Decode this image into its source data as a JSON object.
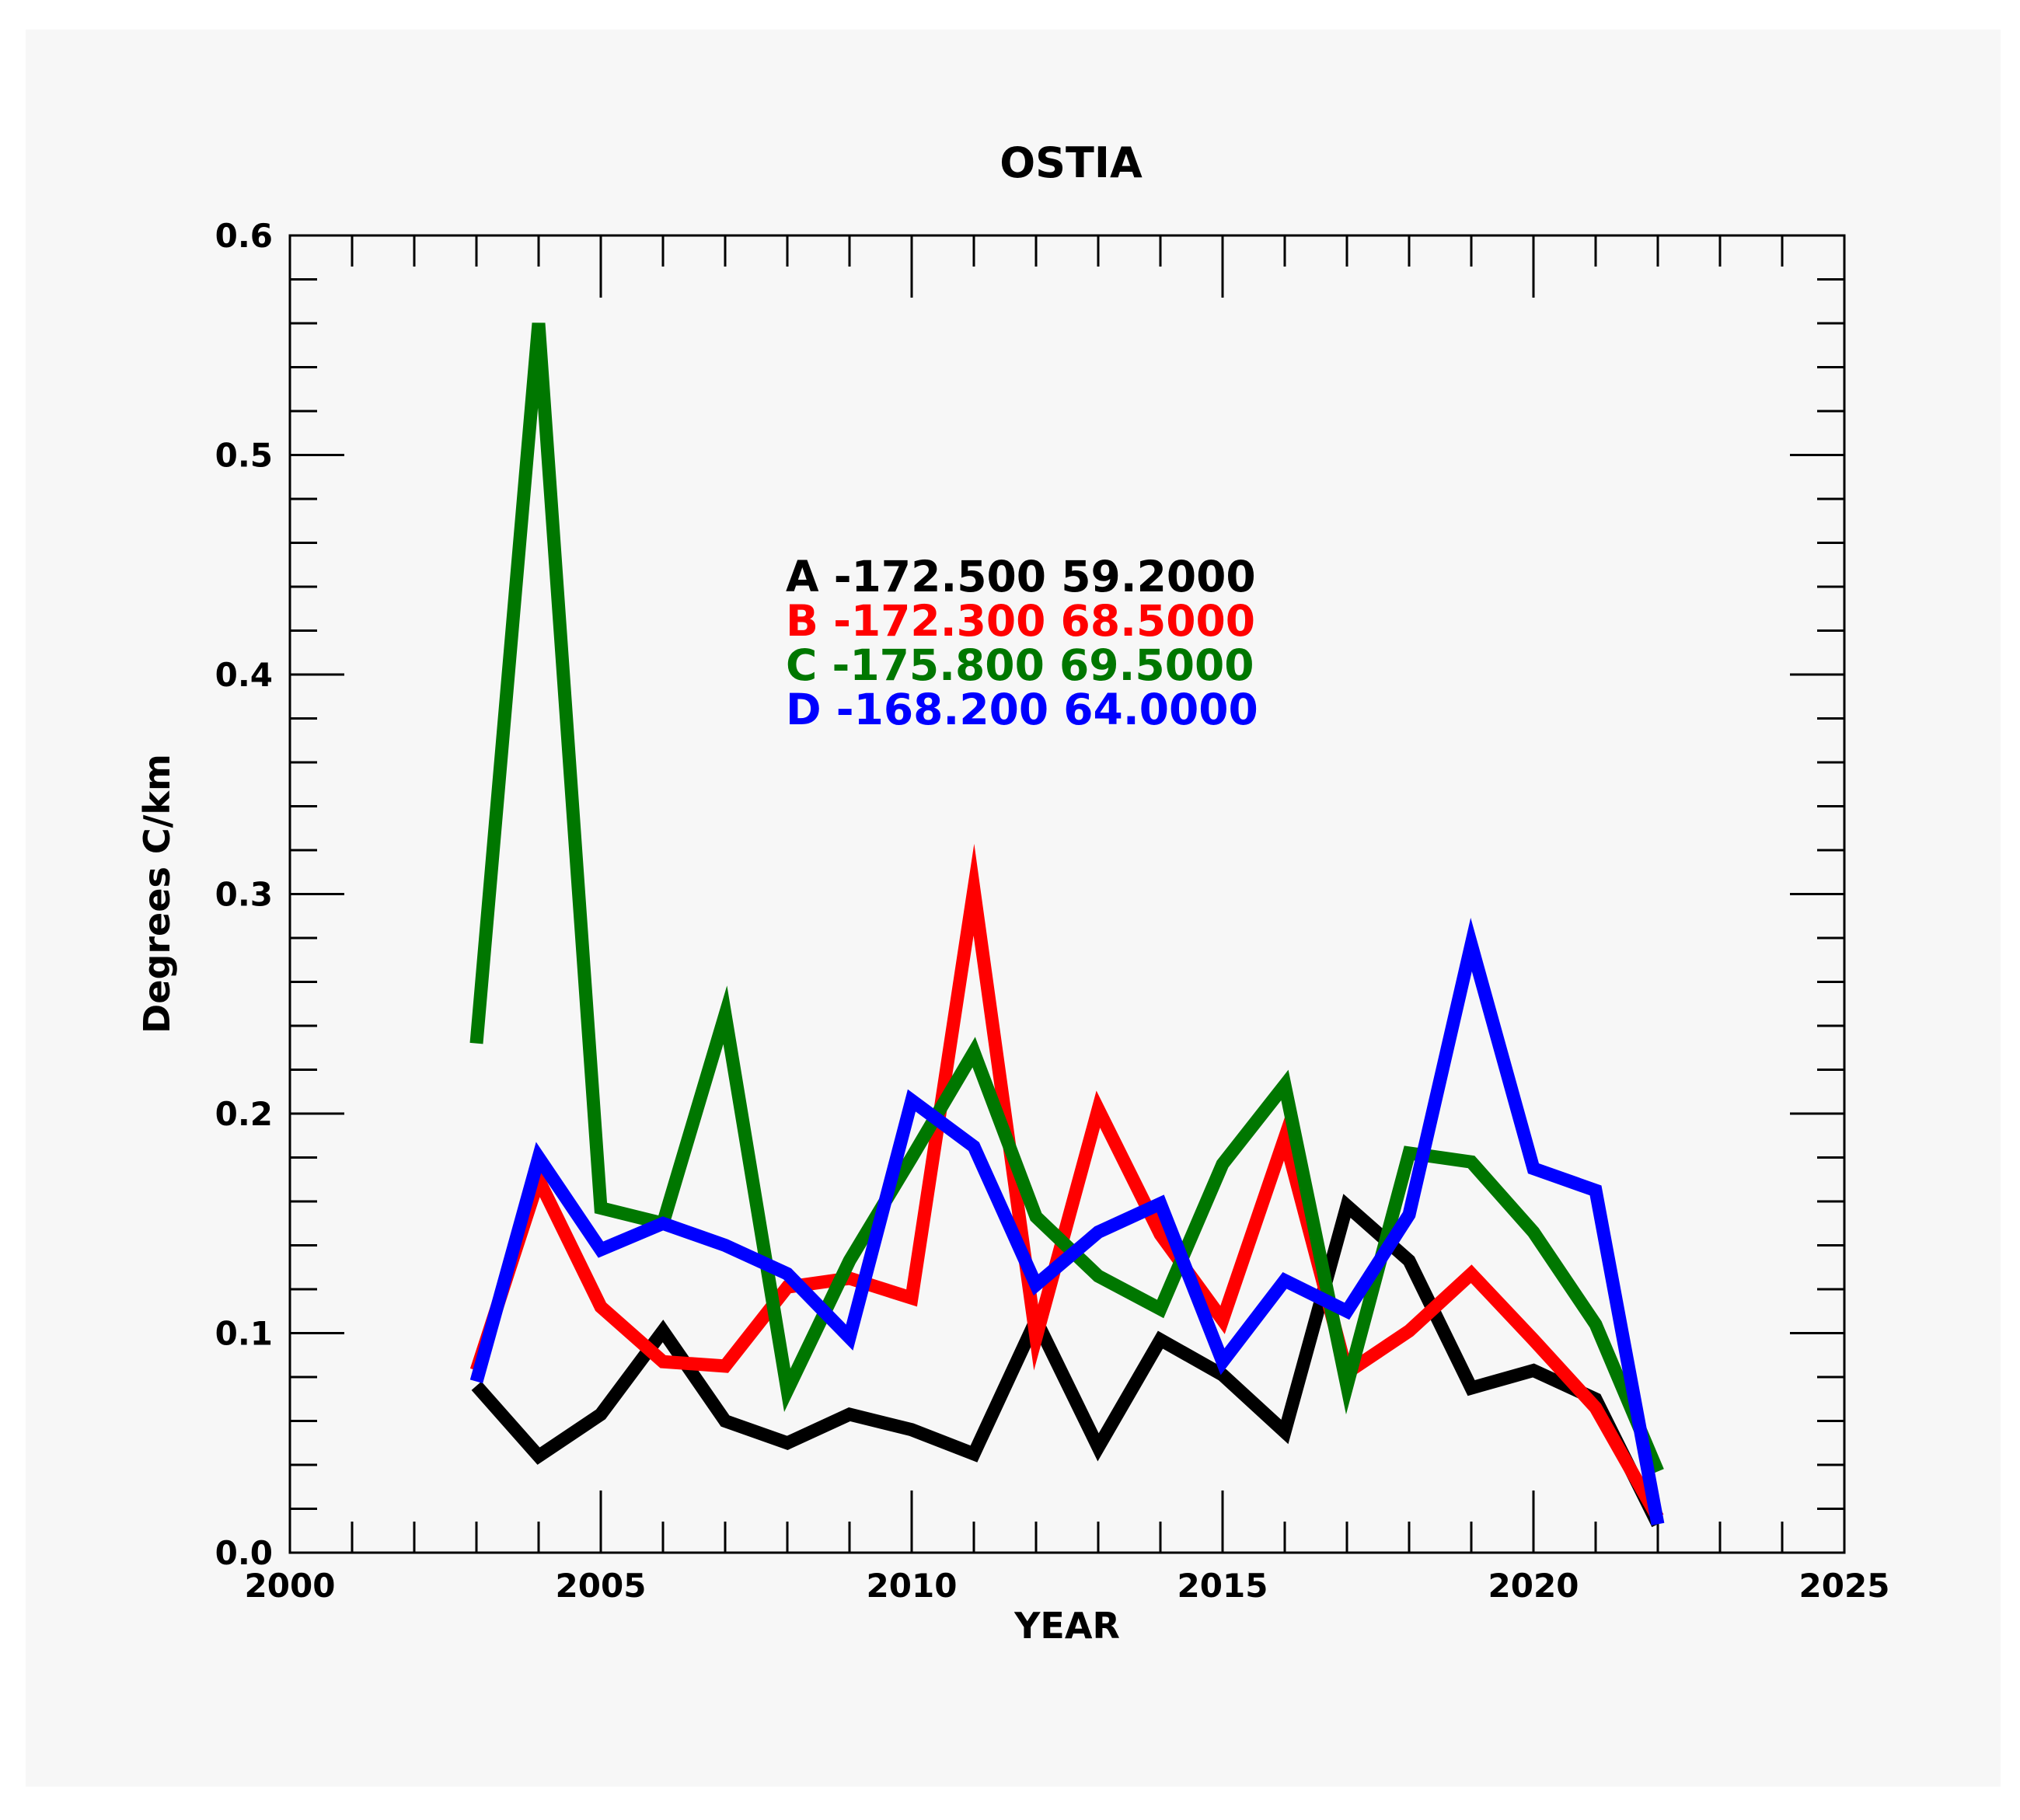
{
  "chart_data": {
    "type": "line",
    "title": "OSTIA",
    "xlabel": "YEAR",
    "ylabel": "Degrees C/km",
    "xlim": [
      2000,
      2025
    ],
    "ylim": [
      0.0,
      0.6
    ],
    "xticks": [
      2000,
      2005,
      2010,
      2015,
      2020,
      2025
    ],
    "xtick_labels": [
      "2000",
      "2005",
      "2010",
      "2015",
      "2020",
      "2025"
    ],
    "yticks": [
      0.0,
      0.1,
      0.2,
      0.3,
      0.4,
      0.5,
      0.6
    ],
    "ytick_labels": [
      "0.0",
      "0.1",
      "0.2",
      "0.3",
      "0.4",
      "0.5",
      "0.6"
    ],
    "x": [
      2003,
      2004,
      2005,
      2006,
      2007,
      2008,
      2009,
      2010,
      2011,
      2012,
      2013,
      2014,
      2015,
      2016,
      2017,
      2018,
      2019,
      2020,
      2021,
      2022
    ],
    "series": [
      {
        "name": "A",
        "legend_label": "A -172.500 59.2000",
        "color": "#000000",
        "values": [
          0.076,
          0.044,
          0.063,
          0.101,
          0.06,
          0.05,
          0.063,
          0.056,
          0.045,
          0.106,
          0.048,
          0.097,
          0.081,
          0.055,
          0.158,
          0.133,
          0.075,
          0.083,
          0.07,
          0.013
        ]
      },
      {
        "name": "B",
        "legend_label": "B -172.300 68.5000",
        "color": "#ff0000",
        "values": [
          0.083,
          0.17,
          0.112,
          0.087,
          0.085,
          0.121,
          0.125,
          0.116,
          0.302,
          0.098,
          0.202,
          0.145,
          0.106,
          0.189,
          0.082,
          0.101,
          0.127,
          0.097,
          0.066,
          0.016
        ]
      },
      {
        "name": "C",
        "legend_label": "C -175.800 69.5000",
        "color": "#007700",
        "values": [
          0.232,
          0.56,
          0.157,
          0.15,
          0.245,
          0.074,
          0.133,
          0.18,
          0.228,
          0.153,
          0.126,
          0.111,
          0.177,
          0.213,
          0.076,
          0.182,
          0.178,
          0.146,
          0.104,
          0.037
        ]
      },
      {
        "name": "D",
        "legend_label": "D -168.200 64.0000",
        "color": "#0000ff",
        "values": [
          0.078,
          0.18,
          0.138,
          0.15,
          0.14,
          0.127,
          0.098,
          0.206,
          0.185,
          0.122,
          0.146,
          0.159,
          0.087,
          0.124,
          0.11,
          0.154,
          0.277,
          0.175,
          0.165,
          0.013
        ]
      }
    ]
  }
}
